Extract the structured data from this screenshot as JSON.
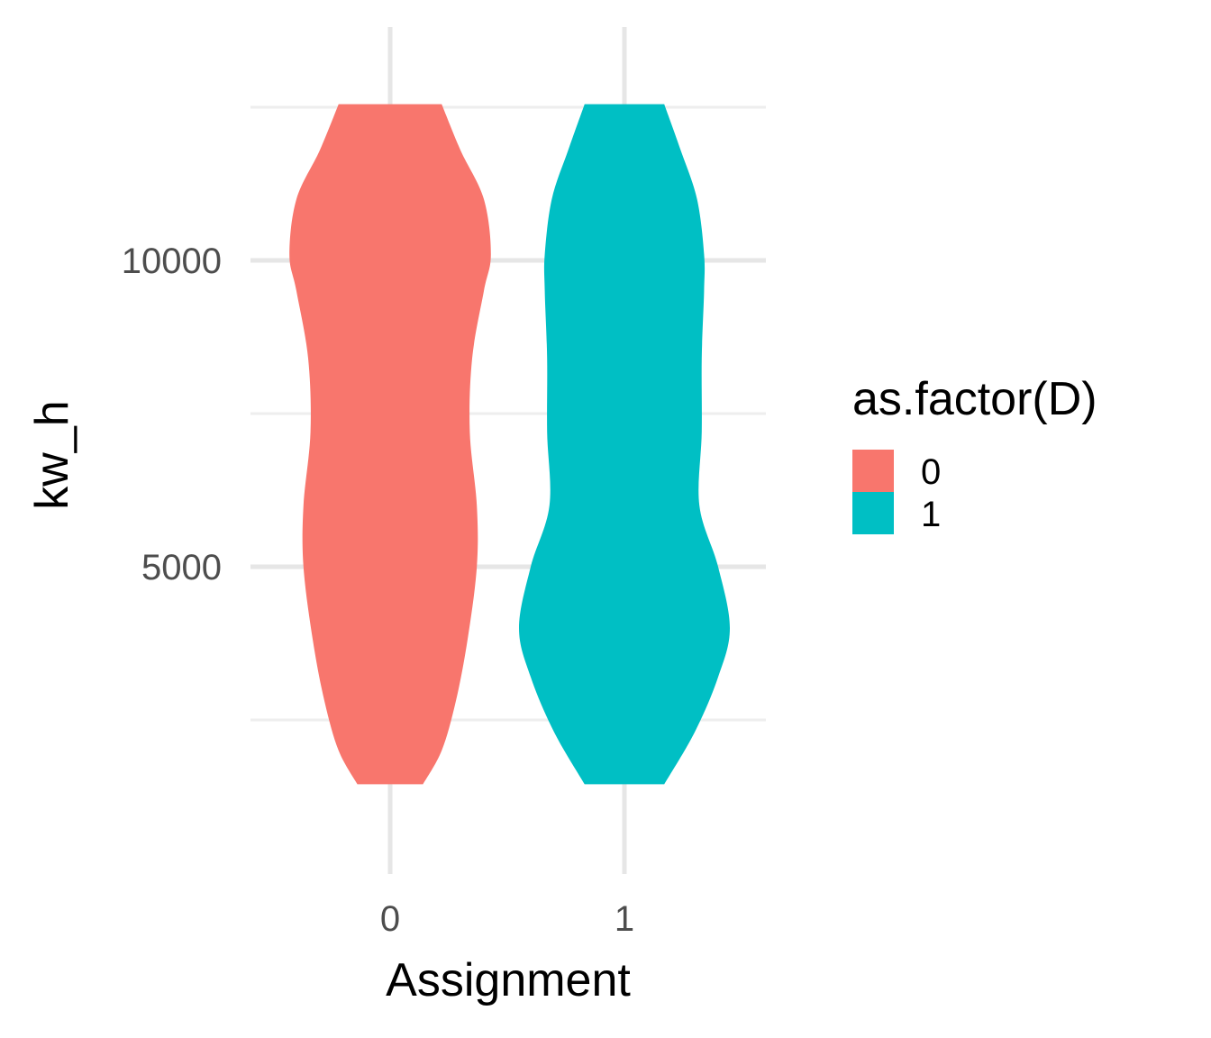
{
  "chart_data": {
    "type": "violin",
    "xlabel": "Assignment",
    "ylabel": "kw_h",
    "categories": [
      "0",
      "1"
    ],
    "y_ticks": [
      5000,
      10000
    ],
    "y_tick_labels": [
      "5000",
      "10000"
    ],
    "ylim": [
      0,
      14000
    ],
    "grid": true,
    "legend": {
      "title": "as.factor(D)",
      "position": "right",
      "entries": [
        {
          "label": "0",
          "color": "#F8766D"
        },
        {
          "label": "1",
          "color": "#00BFC4"
        }
      ]
    },
    "series": [
      {
        "category": "0",
        "color": "#F8766D",
        "y_min": 1450,
        "y_max": 12550,
        "density_profile": [
          {
            "y": 1450,
            "half_width": 0.14
          },
          {
            "y": 2000,
            "half_width": 0.22
          },
          {
            "y": 2800,
            "half_width": 0.28
          },
          {
            "y": 3800,
            "half_width": 0.33
          },
          {
            "y": 5000,
            "half_width": 0.37
          },
          {
            "y": 6000,
            "half_width": 0.37
          },
          {
            "y": 7200,
            "half_width": 0.34
          },
          {
            "y": 8400,
            "half_width": 0.35
          },
          {
            "y": 9500,
            "half_width": 0.4
          },
          {
            "y": 10100,
            "half_width": 0.43
          },
          {
            "y": 11000,
            "half_width": 0.4
          },
          {
            "y": 11800,
            "half_width": 0.3
          },
          {
            "y": 12550,
            "half_width": 0.22
          }
        ]
      },
      {
        "category": "1",
        "color": "#00BFC4",
        "y_min": 1450,
        "y_max": 12550,
        "density_profile": [
          {
            "y": 1450,
            "half_width": 0.17
          },
          {
            "y": 2300,
            "half_width": 0.3
          },
          {
            "y": 3200,
            "half_width": 0.4
          },
          {
            "y": 4000,
            "half_width": 0.45
          },
          {
            "y": 5000,
            "half_width": 0.4
          },
          {
            "y": 6000,
            "half_width": 0.32
          },
          {
            "y": 7200,
            "half_width": 0.33
          },
          {
            "y": 8400,
            "half_width": 0.33
          },
          {
            "y": 9500,
            "half_width": 0.34
          },
          {
            "y": 10100,
            "half_width": 0.34
          },
          {
            "y": 11000,
            "half_width": 0.31
          },
          {
            "y": 11800,
            "half_width": 0.24
          },
          {
            "y": 12550,
            "half_width": 0.17
          }
        ]
      }
    ]
  }
}
